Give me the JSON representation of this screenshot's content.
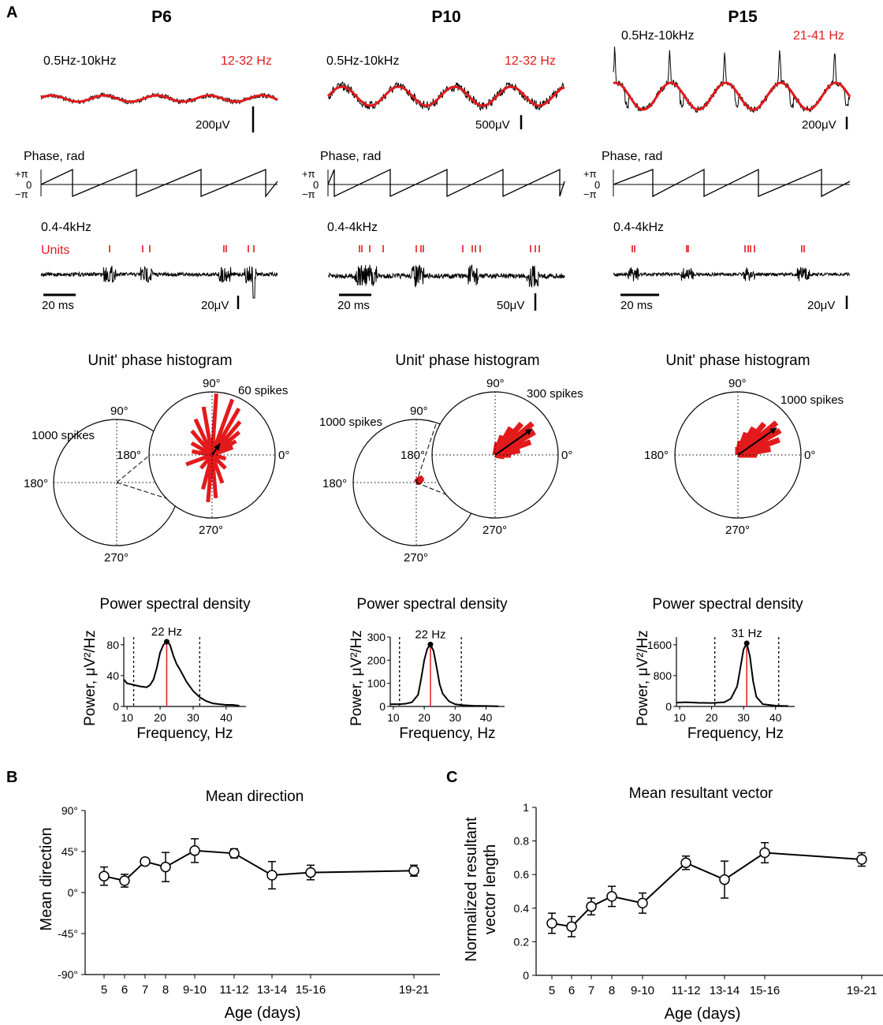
{
  "colors": {
    "accent": "#e31a1c",
    "ink": "#000000"
  },
  "panel_labels": [
    "A",
    "B",
    "C"
  ],
  "ages": [
    {
      "title": "P6",
      "broadband_label": "0.5Hz-10kHz",
      "band_label": "12-32 Hz",
      "lfp_scale": "200μV",
      "phase_label": "Phase, rad",
      "phase_ticks": [
        "+π",
        "0",
        "−π"
      ],
      "mua_label": "0.4-4kHz",
      "units_label": "Units",
      "time_scale": "20 ms",
      "mua_scale": "20μV",
      "hist_title": "Unit' phase histogram",
      "hist_big_spikes": "1000 spikes",
      "hist_zoom_spikes": "60 spikes",
      "angles": [
        "90°",
        "180°",
        "0°",
        "270°"
      ],
      "psd_title": "Power spectral density",
      "psd_ylabel": "Power, μV²/Hz",
      "psd_xlabel": "Frequency, Hz",
      "psd_peak_label": "22 Hz",
      "psd_yticks": [
        "80",
        "40",
        "0"
      ],
      "psd_xticks": [
        "10",
        "20",
        "30",
        "40"
      ]
    },
    {
      "title": "P10",
      "broadband_label": "0.5Hz-10kHz",
      "band_label": "12-32 Hz",
      "lfp_scale": "500μV",
      "phase_label": "Phase, rad",
      "phase_ticks": [
        "+π",
        "0",
        "−π"
      ],
      "mua_label": "0.4-4kHz",
      "time_scale": "20 ms",
      "mua_scale": "50μV",
      "hist_title": "Unit' phase histogram",
      "hist_big_spikes": "1000 spikes",
      "hist_zoom_spikes": "300 spikes",
      "angles": [
        "90°",
        "180°",
        "0°",
        "270°"
      ],
      "psd_title": "Power spectral density",
      "psd_ylabel": "Power, μV²/Hz",
      "psd_xlabel": "Frequency, Hz",
      "psd_peak_label": "22 Hz",
      "psd_yticks": [
        "300",
        "200",
        "100",
        "0"
      ],
      "psd_xticks": [
        "10",
        "20",
        "30",
        "40"
      ]
    },
    {
      "title": "P15",
      "broadband_label": "0.5Hz-10kHz",
      "band_label": "21-41 Hz",
      "lfp_scale": "200μV",
      "phase_label": "Phase, rad",
      "phase_ticks": [
        "+π",
        "0",
        "−π"
      ],
      "mua_label": "0.4-4kHz",
      "time_scale": "20 ms",
      "mua_scale": "20μV",
      "hist_title": "Unit' phase histogram",
      "hist_spikes": "1000 spikes",
      "angles": [
        "90°",
        "180°",
        "0°",
        "270°"
      ],
      "psd_title": "Power spectral density",
      "psd_ylabel": "Power, μV²/Hz",
      "psd_xlabel": "Frequency, Hz",
      "psd_peak_label": "31 Hz",
      "psd_yticks": [
        "1600",
        "800",
        "0"
      ],
      "psd_xticks": [
        "10",
        "20",
        "30",
        "40"
      ]
    }
  ],
  "chart_data": [
    {
      "type": "line",
      "panel": "A-P6-psd",
      "title": "Power spectral density",
      "xlabel": "Frequency, Hz",
      "ylabel": "Power, μV²/Hz",
      "xlim": [
        9,
        46
      ],
      "ylim": [
        0,
        90
      ],
      "x": [
        9,
        10,
        12,
        14,
        16,
        17,
        18,
        19,
        20,
        21,
        22,
        23,
        24,
        25,
        26,
        28,
        30,
        32,
        34,
        36,
        38,
        40,
        42,
        44
      ],
      "y": [
        35,
        30,
        28,
        26,
        25,
        28,
        35,
        50,
        70,
        80,
        84,
        80,
        66,
        55,
        48,
        32,
        20,
        12,
        7,
        4,
        3,
        2,
        2,
        1
      ],
      "peak": 22,
      "band": [
        12,
        32
      ]
    },
    {
      "type": "line",
      "panel": "A-P10-psd",
      "title": "Power spectral density",
      "xlabel": "Frequency, Hz",
      "ylabel": "Power, μV²/Hz",
      "xlim": [
        9,
        46
      ],
      "ylim": [
        0,
        300
      ],
      "x": [
        9,
        12,
        14,
        16,
        18,
        19,
        20,
        21,
        22,
        23,
        24,
        25,
        26,
        28,
        30,
        32,
        36,
        40,
        44
      ],
      "y": [
        10,
        10,
        12,
        18,
        50,
        120,
        200,
        250,
        268,
        240,
        170,
        95,
        55,
        22,
        10,
        6,
        3,
        2,
        1
      ],
      "peak": 22,
      "band": [
        12,
        32
      ]
    },
    {
      "type": "line",
      "panel": "A-P15-psd",
      "title": "Power spectral density",
      "xlabel": "Frequency, Hz",
      "ylabel": "Power, μV²/Hz",
      "xlim": [
        9,
        46
      ],
      "ylim": [
        0,
        1800
      ],
      "x": [
        9,
        12,
        16,
        20,
        24,
        26,
        28,
        29,
        30,
        31,
        32,
        33,
        34,
        36,
        40,
        44
      ],
      "y": [
        100,
        110,
        95,
        90,
        110,
        200,
        520,
        1000,
        1480,
        1640,
        1300,
        650,
        250,
        60,
        20,
        10
      ],
      "peak": 31,
      "band": [
        21,
        41
      ]
    },
    {
      "type": "line",
      "panel": "B",
      "title": "Mean direction",
      "xlabel": "Age (days)",
      "ylabel": "Mean direction",
      "categories": [
        "5",
        "6",
        "7",
        "8",
        "9-10",
        "11-12",
        "13-14",
        "15-16",
        "19-21"
      ],
      "values": [
        18,
        13,
        34,
        28,
        46,
        43,
        19,
        22,
        24
      ],
      "errors": [
        10,
        7,
        3,
        16,
        13,
        5,
        15,
        8,
        6
      ],
      "ylim": [
        -90,
        90
      ],
      "yticks": [
        "-90°",
        "-45°",
        "0°",
        "45°",
        "90°"
      ]
    },
    {
      "type": "line",
      "panel": "C",
      "title": "Mean resultant vector",
      "xlabel": "Age (days)",
      "ylabel": "Normalized  resultant vector length",
      "categories": [
        "5",
        "6",
        "7",
        "8",
        "9-10",
        "11-12",
        "13-14",
        "15-16",
        "19-21"
      ],
      "values": [
        0.31,
        0.29,
        0.41,
        0.47,
        0.43,
        0.67,
        0.57,
        0.73,
        0.69
      ],
      "errors": [
        0.06,
        0.06,
        0.05,
        0.06,
        0.06,
        0.04,
        0.11,
        0.06,
        0.04
      ],
      "ylim": [
        0,
        1
      ],
      "yticks": [
        "0",
        "0.2",
        "0.4",
        "0.6",
        "0.8",
        "1"
      ]
    }
  ],
  "polar": {
    "p6_zoom": [
      [
        86,
        78
      ],
      [
        70,
        75
      ],
      [
        60,
        68
      ],
      [
        50,
        55
      ],
      [
        100,
        62
      ],
      [
        115,
        50
      ],
      [
        130,
        40
      ],
      [
        40,
        45
      ],
      [
        30,
        35
      ],
      [
        20,
        28
      ],
      [
        150,
        30
      ],
      [
        170,
        26
      ],
      [
        200,
        35
      ],
      [
        230,
        22
      ],
      [
        255,
        45
      ],
      [
        265,
        60
      ],
      [
        275,
        55
      ],
      [
        290,
        38
      ],
      [
        315,
        24
      ],
      [
        345,
        18
      ]
    ],
    "p10_zoom": [
      [
        10,
        32
      ],
      [
        20,
        48
      ],
      [
        30,
        58
      ],
      [
        40,
        62
      ],
      [
        50,
        52
      ],
      [
        60,
        40
      ],
      [
        70,
        26
      ],
      [
        0,
        20
      ],
      [
        80,
        16
      ],
      [
        350,
        12
      ]
    ],
    "p10_big": [
      [
        10,
        6
      ],
      [
        20,
        8
      ],
      [
        30,
        10
      ],
      [
        40,
        11
      ],
      [
        50,
        9
      ],
      [
        60,
        6
      ],
      [
        0,
        4
      ],
      [
        70,
        4
      ]
    ],
    "p15": [
      [
        10,
        42
      ],
      [
        20,
        56
      ],
      [
        30,
        62
      ],
      [
        40,
        64
      ],
      [
        50,
        52
      ],
      [
        60,
        40
      ],
      [
        70,
        30
      ],
      [
        80,
        18
      ],
      [
        0,
        24
      ],
      [
        90,
        10
      ]
    ],
    "vectors": [
      [
        55,
        0.22
      ],
      [
        35,
        0.72
      ],
      [
        35,
        0.75
      ]
    ]
  }
}
